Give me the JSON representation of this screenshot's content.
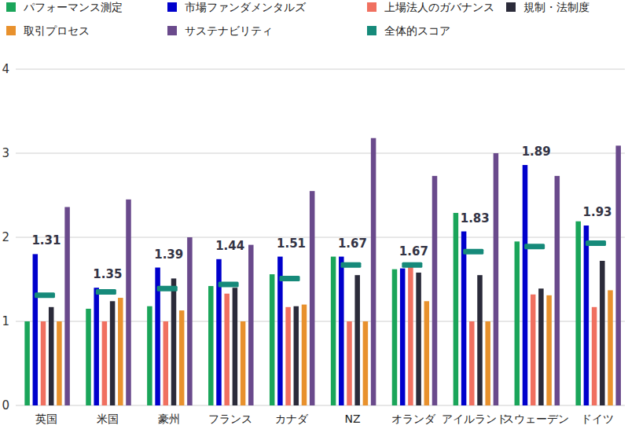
{
  "chart_data": {
    "type": "bar",
    "categories": [
      "英国",
      "米国",
      "豪州",
      "フランス",
      "カナダ",
      "NZ",
      "オランダ",
      "アイルランド",
      "スウェーデン",
      "ドイツ"
    ],
    "series": [
      {
        "name": "パフォーマンス測定",
        "color": "#1aa55a",
        "type": "bar",
        "values": [
          1.0,
          1.15,
          1.18,
          1.42,
          1.56,
          1.77,
          1.62,
          2.29,
          1.95,
          2.19
        ]
      },
      {
        "name": "市場ファンダメンタルズ",
        "color": "#0000cc",
        "type": "bar",
        "values": [
          1.8,
          1.4,
          1.64,
          1.74,
          1.77,
          1.77,
          1.63,
          2.07,
          2.86,
          2.14
        ]
      },
      {
        "name": "上場法人のガバナンス",
        "color": "#f07060",
        "type": "bar",
        "values": [
          1.0,
          1.0,
          1.0,
          1.33,
          1.17,
          1.0,
          1.65,
          1.0,
          1.32,
          1.17
        ]
      },
      {
        "name": "規制・法制度",
        "color": "#2b2b3a",
        "type": "bar",
        "values": [
          1.17,
          1.24,
          1.51,
          1.4,
          1.18,
          1.55,
          1.58,
          1.55,
          1.39,
          1.72
        ]
      },
      {
        "name": "取引プロセス",
        "color": "#e8912d",
        "type": "bar",
        "values": [
          1.0,
          1.28,
          1.13,
          1.0,
          1.2,
          1.0,
          1.24,
          1.0,
          1.31,
          1.37
        ]
      },
      {
        "name": "サステナビリティ",
        "color": "#6a4a8c",
        "type": "bar",
        "values": [
          2.36,
          2.45,
          2.0,
          1.91,
          2.55,
          3.18,
          2.73,
          3.0,
          2.73,
          3.09
        ]
      },
      {
        "name": "全体的スコア",
        "color": "#168a7a",
        "type": "marker",
        "marker": "dash",
        "data_labels": true,
        "values": [
          1.31,
          1.35,
          1.39,
          1.44,
          1.51,
          1.67,
          1.67,
          1.83,
          1.89,
          1.93
        ]
      }
    ],
    "ylim": [
      0,
      4
    ],
    "yticks": [
      0,
      1,
      2,
      3,
      4
    ],
    "grid": true,
    "legend": "top"
  }
}
